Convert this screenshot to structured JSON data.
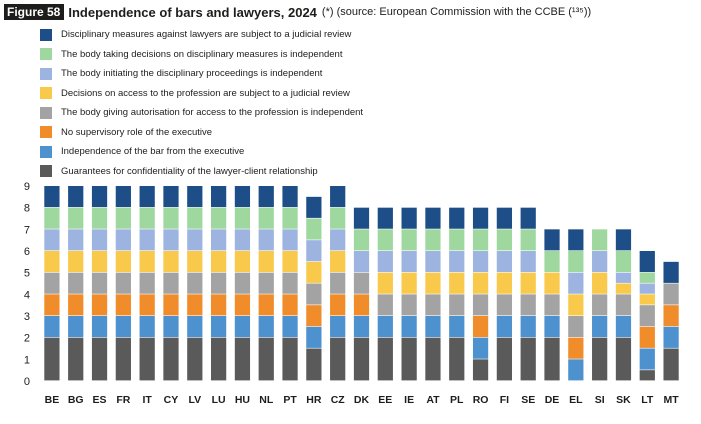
{
  "figure": {
    "badge": "Figure 58",
    "title": "Independence of bars and lawyers, 2024",
    "note": "(*) (source: European Commission with the CCBE (¹³⁵))"
  },
  "chart_data": {
    "type": "bar",
    "stacked": true,
    "categories": [
      "BE",
      "BG",
      "ES",
      "FR",
      "IT",
      "CY",
      "LV",
      "LU",
      "HU",
      "NL",
      "PT",
      "HR",
      "CZ",
      "DK",
      "EE",
      "IE",
      "AT",
      "PL",
      "RO",
      "FI",
      "SE",
      "DE",
      "EL",
      "SI",
      "SK",
      "LT",
      "MT"
    ],
    "ylim": [
      0,
      9
    ],
    "yticks": [
      0,
      1,
      2,
      3,
      4,
      5,
      6,
      7,
      8,
      9
    ],
    "grid": false,
    "legend_position": "top-left",
    "series": [
      {
        "name": "Guarantees for confidentiality of the lawyer-client relationship",
        "color": "#5a5a5a",
        "values": [
          2,
          2,
          2,
          2,
          2,
          2,
          2,
          2,
          2,
          2,
          2,
          1.5,
          2,
          2,
          2,
          2,
          2,
          2,
          1,
          2,
          2,
          2,
          0,
          2,
          2,
          0.5,
          1.5
        ]
      },
      {
        "name": "Independence of the bar from the executive",
        "color": "#4e91cf",
        "values": [
          1,
          1,
          1,
          1,
          1,
          1,
          1,
          1,
          1,
          1,
          1,
          1,
          1,
          1,
          1,
          1,
          1,
          1,
          1,
          1,
          1,
          1,
          1,
          1,
          1,
          1,
          1
        ]
      },
      {
        "name": "No supervisory role of the executive",
        "color": "#f08c2a",
        "values": [
          1,
          1,
          1,
          1,
          1,
          1,
          1,
          1,
          1,
          1,
          1,
          1,
          1,
          1,
          0,
          0,
          0,
          0,
          1,
          0,
          0,
          0,
          1,
          0,
          0,
          1,
          1
        ]
      },
      {
        "name": "The body giving autorisation for access to the profession is independent",
        "color": "#a3a3a3",
        "values": [
          1,
          1,
          1,
          1,
          1,
          1,
          1,
          1,
          1,
          1,
          1,
          1,
          1,
          1,
          1,
          1,
          1,
          1,
          1,
          1,
          1,
          1,
          1,
          1,
          1,
          1,
          1
        ]
      },
      {
        "name": "Decisions on access to the profession are subject to a judicial review",
        "color": "#f8c94a",
        "values": [
          1,
          1,
          1,
          1,
          1,
          1,
          1,
          1,
          1,
          1,
          1,
          1,
          1,
          0,
          1,
          1,
          1,
          1,
          1,
          1,
          1,
          1,
          1,
          1,
          0.5,
          0.5,
          0
        ]
      },
      {
        "name": "The body initiating the disciplinary proceedings is independent",
        "color": "#9db4e0",
        "values": [
          1,
          1,
          1,
          1,
          1,
          1,
          1,
          1,
          1,
          1,
          1,
          1,
          1,
          1,
          1,
          1,
          1,
          1,
          1,
          1,
          1,
          0,
          1,
          1,
          0.5,
          0.5,
          0
        ]
      },
      {
        "name": "The body taking decisions on disciplinary measures is independent",
        "color": "#9fd89f",
        "values": [
          1,
          1,
          1,
          1,
          1,
          1,
          1,
          1,
          1,
          1,
          1,
          1,
          1,
          1,
          1,
          1,
          1,
          1,
          1,
          1,
          1,
          1,
          1,
          1,
          1,
          0.5,
          0
        ]
      },
      {
        "name": "Disciplinary measures against lawyers are subject to a judicial review",
        "color": "#1e4e87",
        "values": [
          1,
          1,
          1,
          1,
          1,
          1,
          1,
          1,
          1,
          1,
          1,
          1,
          1,
          1,
          1,
          1,
          1,
          1,
          1,
          1,
          1,
          1,
          1,
          0,
          1,
          1,
          1
        ]
      }
    ]
  }
}
